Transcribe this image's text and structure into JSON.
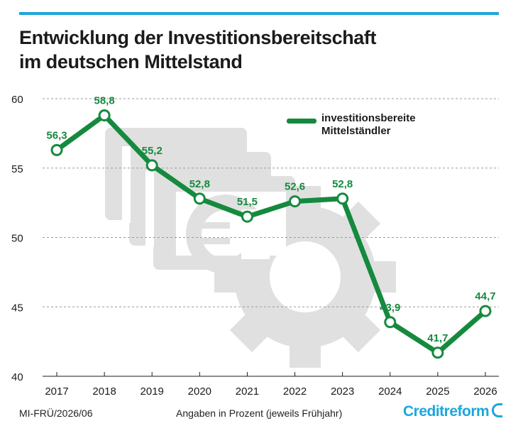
{
  "title_line1": "Entwicklung der Investitionsbereitschaft",
  "title_line2": "im deutschen Mittelstand",
  "footer_left": "MI-FRÜ/2026/06",
  "footer_center": "Angaben in Prozent (jeweils Frühjahr)",
  "logo_text": "Creditreform",
  "legend_line1": "investitionsbereite",
  "legend_line2": "Mittelständler",
  "colors": {
    "line": "#158a3e",
    "accent": "#1aa7dc",
    "background_graphic": "#e0e0e0"
  },
  "chart_data": {
    "type": "line",
    "title": "Entwicklung der Investitionsbereitschaft im deutschen Mittelstand",
    "x": [
      "2017",
      "2018",
      "2019",
      "2020",
      "2021",
      "2022",
      "2023",
      "2024",
      "2025",
      "2026"
    ],
    "series": [
      {
        "name": "investitionsbereite Mittelständler",
        "values": [
          56.3,
          58.8,
          55.2,
          52.8,
          51.5,
          52.6,
          52.8,
          43.9,
          41.7,
          44.7
        ],
        "labels": [
          "56,3",
          "58,8",
          "55,2",
          "52,8",
          "51,5",
          "52,6",
          "52,8",
          "43,9",
          "41,7",
          "44,7"
        ]
      }
    ],
    "ylim": [
      40,
      60
    ],
    "yticks": [
      40,
      45,
      50,
      55,
      60
    ],
    "ytick_labels": [
      "40",
      "45",
      "50",
      "55",
      "60"
    ],
    "grid": true,
    "legend": "top-right"
  }
}
